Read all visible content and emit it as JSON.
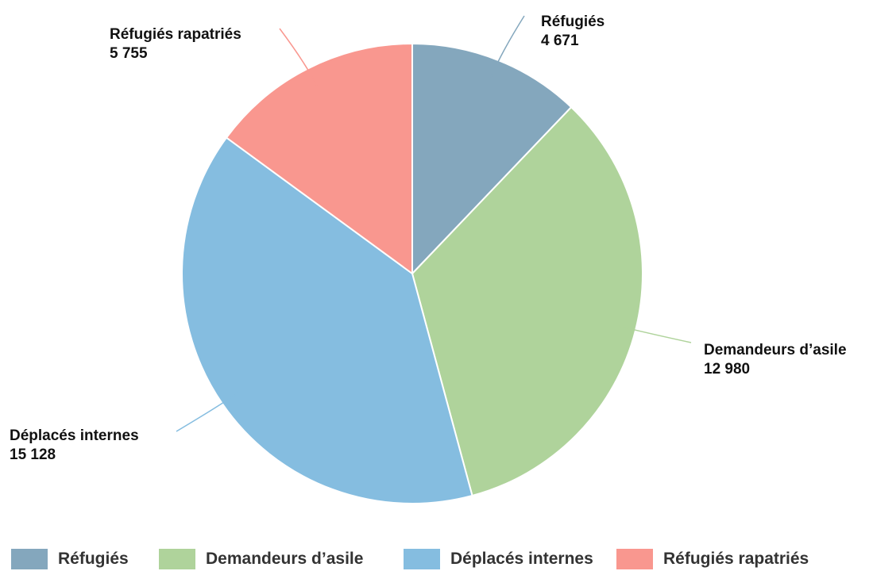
{
  "chart_data": {
    "type": "pie",
    "title": "",
    "slices": [
      {
        "label": "Réfugiés",
        "value": 4671,
        "value_label": "4 671",
        "color": "#84a7bd"
      },
      {
        "label": "Demandeurs d’asile",
        "value": 12980,
        "value_label": "12 980",
        "color": "#afd39b"
      },
      {
        "label": "Déplacés internes",
        "value": 15128,
        "value_label": "15 128",
        "color": "#85bde0"
      },
      {
        "label": "Réfugiés rapatriés",
        "value": 5755,
        "value_label": "5 755",
        "color": "#f9978f"
      }
    ],
    "legend_position": "bottom"
  }
}
